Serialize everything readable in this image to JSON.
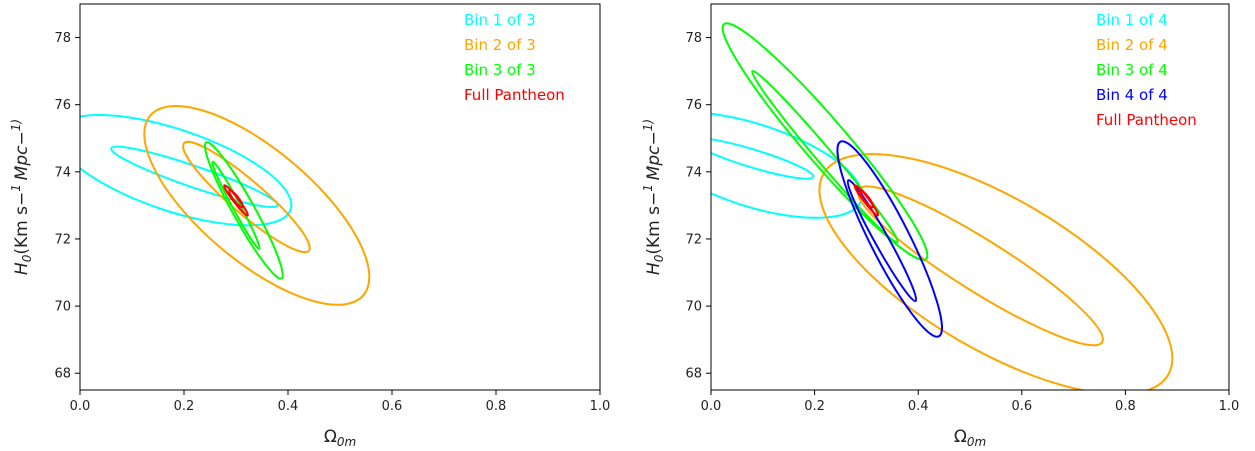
{
  "chart_data": [
    {
      "type": "contour",
      "xlabel": "Ω0m",
      "ylabel": "H0(Km s−1 Mpc−1)",
      "xlim": [
        0.0,
        1.0
      ],
      "ylim": [
        67.5,
        79.0
      ],
      "xticks": [
        "0.0",
        "0.2",
        "0.4",
        "0.6",
        "0.8",
        "1.0"
      ],
      "yticks": [
        "68",
        "70",
        "72",
        "74",
        "76",
        "78"
      ],
      "legend_position": "top-right",
      "series": [
        {
          "name": "Bin 1 of 3",
          "color": "#00ffff",
          "contours": [
            {
              "level": "1σ",
              "center": [
                0.22,
                73.85
              ],
              "tips": [
                [
                  0.08,
                  74.7
                ],
                [
                  0.4,
                  73.0
                ]
              ],
              "half_width": 0.12
            },
            {
              "level": "2σ",
              "center": [
                0.18,
                74.05
              ],
              "tips": [
                [
                  -0.05,
                  75.3
                ],
                [
                  0.4,
                  72.95
                ]
              ],
              "half_width": 0.33
            }
          ]
        },
        {
          "name": "Bin 2 of 3",
          "color": "#ffa500",
          "contours": [
            {
              "level": "1σ",
              "center": [
                0.32,
                73.25
              ],
              "tips": [
                [
                  0.2,
                  74.8
                ],
                [
                  0.44,
                  71.6
                ]
              ],
              "half_width": 0.2
            },
            {
              "level": "2σ",
              "center": [
                0.34,
                73.0
              ],
              "tips": [
                [
                  0.14,
                  75.65
                ],
                [
                  0.55,
                  70.3
                ]
              ],
              "half_width": 0.4
            }
          ]
        },
        {
          "name": "Bin 3 of 3",
          "color": "#00ff00",
          "contours": [
            {
              "level": "1σ",
              "center": [
                0.3,
                73.0
              ],
              "tips": [
                [
                  0.26,
                  74.3
                ],
                [
                  0.35,
                  71.7
                ]
              ],
              "half_width": 0.08
            },
            {
              "level": "2σ",
              "center": [
                0.315,
                72.85
              ],
              "tips": [
                [
                  0.24,
                  74.9
                ],
                [
                  0.385,
                  70.85
                ]
              ],
              "half_width": 0.14
            }
          ]
        },
        {
          "name": "Full Pantheon",
          "color": "#ff0000",
          "contours": [
            {
              "level": "1σ",
              "center": [
                0.3,
                73.2
              ],
              "tips": [
                [
                  0.285,
                  73.45
                ],
                [
                  0.31,
                  72.95
                ]
              ],
              "half_width": 0.045
            },
            {
              "level": "2σ",
              "center": [
                0.3,
                73.15
              ],
              "tips": [
                [
                  0.28,
                  73.65
                ],
                [
                  0.325,
                  72.75
                ]
              ],
              "half_width": 0.09
            }
          ]
        }
      ]
    },
    {
      "type": "contour",
      "xlabel": "Ω0m",
      "ylabel": "H0(Km s−1 Mpc−1)",
      "xlim": [
        0.0,
        1.0
      ],
      "ylim": [
        67.5,
        79.0
      ],
      "xticks": [
        "0.0",
        "0.2",
        "0.4",
        "0.6",
        "0.8",
        "1.0"
      ],
      "yticks": [
        "68",
        "70",
        "72",
        "74",
        "76",
        "78"
      ],
      "legend_position": "top-right",
      "series": [
        {
          "name": "Bin 1 of 4",
          "color": "#00ffff",
          "contours": [
            {
              "level": "1σ",
              "center": [
                0.08,
                74.4
              ],
              "tips": [
                [
                  -0.03,
                  75.0
                ],
                [
                  0.205,
                  73.9
                ]
              ],
              "half_width": 0.14
            },
            {
              "level": "2σ",
              "center": [
                0.08,
                74.2
              ],
              "tips": [
                [
                  -0.12,
                  75.5
                ],
                [
                  0.3,
                  73.4
                ]
              ],
              "half_width": 0.36
            }
          ]
        },
        {
          "name": "Bin 2 of 4",
          "color": "#ffa500",
          "contours": [
            {
              "level": "1σ",
              "center": [
                0.52,
                71.2
              ],
              "tips": [
                [
                  0.29,
                  73.6
                ],
                [
                  0.76,
                  69.05
                ]
              ],
              "half_width": 0.18
            },
            {
              "level": "2σ",
              "center": [
                0.55,
                70.95
              ],
              "tips": [
                [
                  0.215,
                  73.95
                ],
                [
                  0.88,
                  67.95
                ]
              ],
              "half_width": 0.38
            }
          ]
        },
        {
          "name": "Bin 3 of 4",
          "color": "#00ff00",
          "contours": [
            {
              "level": "1σ",
              "center": [
                0.22,
                74.45
              ],
              "tips": [
                [
                  0.09,
                  77.15
                ],
                [
                  0.37,
                  72.05
                ]
              ],
              "half_width": 0.07
            },
            {
              "level": "2σ",
              "center": [
                0.22,
                74.9
              ],
              "tips": [
                [
                  0.03,
                  78.35
                ],
                [
                  0.42,
                  71.35
                ]
              ],
              "half_width": 0.14
            }
          ]
        },
        {
          "name": "Bin 4 of 4",
          "color": "#0000ff",
          "contours": [
            {
              "level": "1σ",
              "center": [
                0.33,
                71.95
              ],
              "tips": [
                [
                  0.27,
                  73.8
                ],
                [
                  0.4,
                  70.2
                ]
              ],
              "half_width": 0.1
            },
            {
              "level": "2σ",
              "center": [
                0.345,
                72.0
              ],
              "tips": [
                [
                  0.25,
                  74.9
                ],
                [
                  0.44,
                  69.1
                ]
              ],
              "half_width": 0.18
            }
          ]
        },
        {
          "name": "Full Pantheon",
          "color": "#ff0000",
          "contours": [
            {
              "level": "1σ",
              "center": [
                0.3,
                73.2
              ],
              "tips": [
                [
                  0.285,
                  73.45
                ],
                [
                  0.31,
                  72.95
                ]
              ],
              "half_width": 0.045
            },
            {
              "level": "2σ",
              "center": [
                0.3,
                73.15
              ],
              "tips": [
                [
                  0.28,
                  73.65
                ],
                [
                  0.325,
                  72.75
                ]
              ],
              "half_width": 0.09
            }
          ]
        }
      ]
    }
  ]
}
